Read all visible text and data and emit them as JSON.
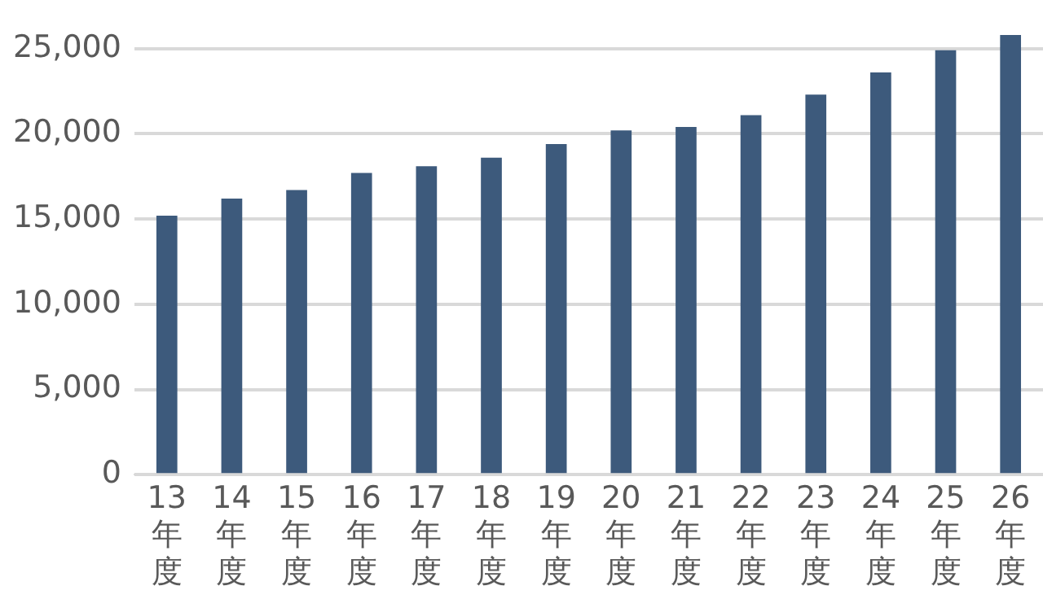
{
  "chart_data": {
    "type": "bar",
    "categories": [
      "13年度",
      "14年度",
      "15年度",
      "16年度",
      "17年度",
      "18年度",
      "19年度",
      "20年度",
      "21年度",
      "22年度",
      "23年度",
      "24年度",
      "25年度",
      "26年度"
    ],
    "values": [
      15200,
      16200,
      16700,
      17700,
      18100,
      18600,
      19400,
      20200,
      20400,
      21100,
      22300,
      23600,
      24900,
      25800
    ],
    "color": "#3d5a7c",
    "ylim": [
      0,
      26000
    ],
    "yticks": [
      0,
      {
        "value": 5000,
        "label": "5,000"
      },
      {
        "value": 10000,
        "label": "10,000"
      },
      {
        "value": 15000,
        "label": "15,000"
      },
      {
        "value": 20000,
        "label": "20,000"
      },
      {
        "value": 25000,
        "label": "25,000"
      }
    ],
    "grid": "y",
    "legend": false
  }
}
